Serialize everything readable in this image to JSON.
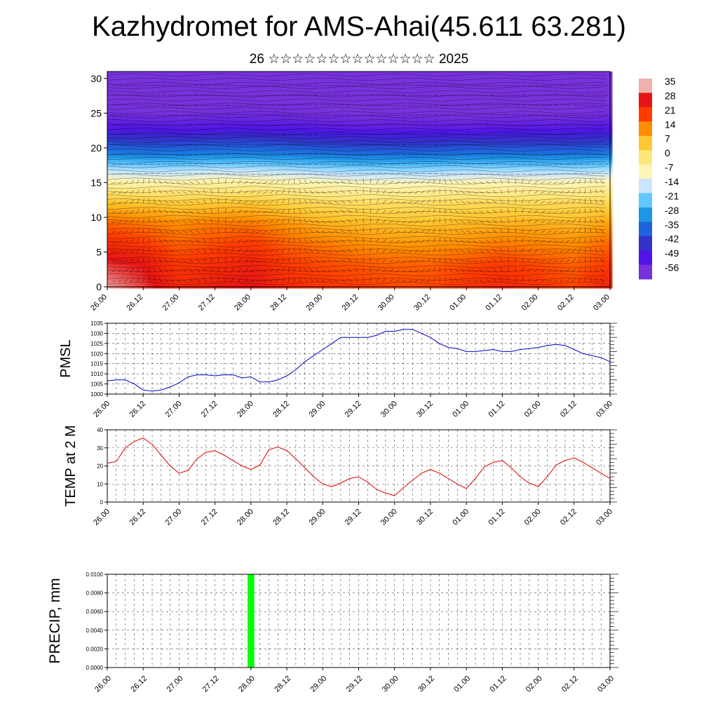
{
  "title": "Kazhydromet for AMS-Ahai(45.611 63.281)",
  "subtitle": "26 ☆☆☆☆☆☆☆☆☆☆☆☆☆☆ 2025",
  "time_labels": [
    "26.00",
    "26.12",
    "27.00",
    "27.12",
    "28.00",
    "28.12",
    "29.00",
    "29.12",
    "30.00",
    "30.12",
    "01.00",
    "01.12",
    "02.00",
    "02.12",
    "03.00"
  ],
  "chart_data": [
    {
      "type": "heatmap",
      "title": "",
      "xlabel": "",
      "ylabel": "",
      "x_categories": [
        "26.00",
        "26.12",
        "27.00",
        "27.12",
        "28.00",
        "28.12",
        "29.00",
        "29.12",
        "30.00",
        "30.12",
        "01.00",
        "01.12",
        "02.00",
        "02.12",
        "03.00"
      ],
      "ylim": [
        0,
        31
      ],
      "yticks": [
        0,
        5,
        10,
        15,
        20,
        25,
        30
      ],
      "colorbar": {
        "labels": [
          "35",
          "28",
          "21",
          "14",
          "7",
          "0",
          "-7",
          "-14",
          "-21",
          "-28",
          "-35",
          "-42",
          "-49",
          "-56"
        ],
        "values": [
          35,
          28,
          21,
          14,
          7,
          0,
          -7,
          -14,
          -21,
          -28,
          -35,
          -42,
          -49,
          -56
        ],
        "colors": [
          "#f0b0b0",
          "#e61414",
          "#ff3c00",
          "#ff8c00",
          "#ffc832",
          "#ffe678",
          "#fff5b4",
          "#c8e6ff",
          "#64c8ff",
          "#1e96e6",
          "#1e64dc",
          "#3232c8",
          "#5014e6",
          "#7832dc"
        ]
      },
      "rows": [
        {
          "level": 0,
          "values": [
            34,
            30,
            24,
            26,
            28,
            24,
            22,
            21,
            20,
            20,
            22,
            24,
            22,
            20,
            26
          ]
        },
        {
          "level": 3,
          "values": [
            30,
            28,
            22,
            24,
            26,
            22,
            20,
            19,
            18,
            18,
            20,
            22,
            20,
            18,
            22
          ]
        },
        {
          "level": 6,
          "values": [
            24,
            22,
            18,
            20,
            22,
            18,
            16,
            14,
            13,
            13,
            14,
            16,
            15,
            14,
            18
          ]
        },
        {
          "level": 9,
          "values": [
            18,
            16,
            14,
            16,
            16,
            13,
            10,
            9,
            8,
            8,
            9,
            10,
            10,
            9,
            12
          ]
        },
        {
          "level": 12,
          "values": [
            8,
            7,
            6,
            7,
            7,
            5,
            3,
            2,
            2,
            2,
            3,
            3,
            3,
            3,
            4
          ]
        },
        {
          "level": 15,
          "values": [
            -5,
            -6,
            -6,
            -5,
            -5,
            -6,
            -7,
            -8,
            -8,
            -8,
            -7,
            -7,
            -7,
            -7,
            -6
          ]
        },
        {
          "level": 17,
          "values": [
            -16,
            -17,
            -17,
            -16,
            -16,
            -17,
            -18,
            -19,
            -19,
            -19,
            -18,
            -18,
            -18,
            -18,
            -17
          ]
        },
        {
          "level": 19,
          "values": [
            -30,
            -31,
            -31,
            -30,
            -30,
            -31,
            -32,
            -33,
            -33,
            -33,
            -32,
            -32,
            -32,
            -32,
            -31
          ]
        },
        {
          "level": 21,
          "values": [
            -40,
            -41,
            -41,
            -40,
            -40,
            -41,
            -42,
            -43,
            -43,
            -43,
            -42,
            -42,
            -42,
            -42,
            -41
          ]
        },
        {
          "level": 23,
          "values": [
            -50,
            -50,
            -51,
            -50,
            -50,
            -50,
            -51,
            -52,
            -52,
            -52,
            -52,
            -51,
            -51,
            -51,
            -50
          ]
        },
        {
          "level": 25,
          "values": [
            -55,
            -56,
            -56,
            -55,
            -55,
            -55,
            -56,
            -56,
            -56,
            -56,
            -57,
            -56,
            -56,
            -56,
            -55
          ]
        },
        {
          "level": 27,
          "values": [
            -56,
            -56,
            -56,
            -56,
            -56,
            -56,
            -56,
            -56,
            -56,
            -56,
            -56,
            -56,
            -56,
            -56,
            -56
          ]
        },
        {
          "level": 31,
          "values": [
            -56,
            -56,
            -56,
            -56,
            -56,
            -56,
            -56,
            -56,
            -56,
            -56,
            -56,
            -56,
            -56,
            -56,
            -56
          ]
        }
      ],
      "grid": false,
      "colorbar_placement": "right"
    },
    {
      "type": "line",
      "title": "",
      "xlabel": "",
      "ylabel": "PMSL",
      "x": [
        "26.00",
        "26.03",
        "26.06",
        "26.09",
        "26.12",
        "26.15",
        "26.18",
        "26.21",
        "27.00",
        "27.03",
        "27.06",
        "27.09",
        "27.12",
        "27.15",
        "27.18",
        "27.21",
        "28.00",
        "28.03",
        "28.06",
        "28.09",
        "28.12",
        "28.15",
        "28.18",
        "28.21",
        "29.00",
        "29.03",
        "29.06",
        "29.09",
        "29.12",
        "29.15",
        "29.18",
        "29.21",
        "30.00",
        "30.03",
        "30.06",
        "30.09",
        "30.12",
        "30.15",
        "30.18",
        "30.21",
        "01.00",
        "01.03",
        "01.06",
        "01.09",
        "01.12",
        "01.15",
        "01.18",
        "01.21",
        "02.00",
        "02.03",
        "02.06",
        "02.09",
        "02.12",
        "02.15",
        "02.18",
        "02.21",
        "03.00"
      ],
      "ylim": [
        1000,
        1035
      ],
      "yticks": [
        1000,
        1005,
        1010,
        1015,
        1020,
        1025,
        1030,
        1035
      ],
      "x_tick_labels": [
        "26.00",
        "26.12",
        "27.00",
        "27.12",
        "28.00",
        "28.12",
        "29.00",
        "29.12",
        "30.00",
        "30.12",
        "01.00",
        "01.12",
        "02.00",
        "02.12",
        "03.00"
      ],
      "series": [
        {
          "color": "#0000cc",
          "values": [
            1006.5,
            1007,
            1007,
            1005,
            1002,
            1001.5,
            1002,
            1003.5,
            1005.5,
            1008.5,
            1009.5,
            1009.5,
            1009,
            1009.5,
            1009.5,
            1008,
            1008.5,
            1006,
            1006,
            1007,
            1009,
            1012,
            1016,
            1019,
            1022,
            1025,
            1028,
            1028,
            1028,
            1028,
            1029,
            1031,
            1031,
            1032,
            1032,
            1030,
            1028,
            1025,
            1023,
            1022.5,
            1021,
            1021,
            1021.5,
            1022,
            1021,
            1021,
            1022,
            1022.5,
            1023,
            1024,
            1024.5,
            1024,
            1022,
            1020,
            1019,
            1018,
            1016
          ]
        }
      ],
      "grid": true
    },
    {
      "type": "line",
      "title": "",
      "xlabel": "",
      "ylabel": "TEMP at 2 M",
      "x": [
        "26.00",
        "26.03",
        "26.06",
        "26.09",
        "26.12",
        "26.15",
        "26.18",
        "26.21",
        "27.00",
        "27.03",
        "27.06",
        "27.09",
        "27.12",
        "27.15",
        "27.18",
        "27.21",
        "28.00",
        "28.03",
        "28.06",
        "28.09",
        "28.12",
        "28.15",
        "28.18",
        "28.21",
        "29.00",
        "29.03",
        "29.06",
        "29.09",
        "29.12",
        "29.15",
        "29.18",
        "29.21",
        "30.00",
        "30.03",
        "30.06",
        "30.09",
        "30.12",
        "30.15",
        "30.18",
        "30.21",
        "01.00",
        "01.03",
        "01.06",
        "01.09",
        "01.12",
        "01.15",
        "01.18",
        "01.21",
        "02.00",
        "02.03",
        "02.06",
        "02.09",
        "02.12",
        "02.15",
        "02.18",
        "02.21",
        "03.00"
      ],
      "ylim": [
        0,
        40
      ],
      "yticks": [
        0,
        10,
        20,
        30,
        40
      ],
      "x_tick_labels": [
        "26.00",
        "26.12",
        "27.00",
        "27.12",
        "28.00",
        "28.12",
        "29.00",
        "29.12",
        "30.00",
        "30.12",
        "01.00",
        "01.12",
        "02.00",
        "02.12",
        "03.00"
      ],
      "series": [
        {
          "color": "#dd0000",
          "values": [
            21.5,
            22.5,
            30,
            33.5,
            35.5,
            32,
            26,
            20,
            16,
            17.5,
            24,
            27.5,
            28.5,
            26,
            23,
            20,
            18,
            20.5,
            29,
            30.5,
            28.5,
            24,
            19,
            14,
            10,
            8.5,
            10.5,
            13,
            14,
            11,
            7,
            5,
            3.5,
            8,
            12,
            16,
            18,
            16,
            13,
            10,
            7.5,
            13,
            19.5,
            22,
            23,
            19,
            14,
            10.5,
            8.5,
            14,
            20.5,
            23,
            24.5,
            22,
            19,
            16,
            13
          ]
        }
      ],
      "grid": true
    },
    {
      "type": "bar",
      "title": "",
      "xlabel": "",
      "ylabel": "PRECIP, mm",
      "categories": [
        "26.00",
        "26.12",
        "27.00",
        "27.12",
        "28.00",
        "28.12",
        "29.00",
        "29.12",
        "30.00",
        "30.12",
        "01.00",
        "01.12",
        "02.00",
        "02.12",
        "03.00"
      ],
      "bars": [
        {
          "x": "28.00",
          "value": 0.01,
          "color": "#00ff00"
        }
      ],
      "ylim": [
        0,
        0.01
      ],
      "ytick_labels": [
        "0.0000",
        "0.0020",
        "0.0040",
        "0.0060",
        "0.0080",
        "0.0100"
      ],
      "yticks": [
        0,
        0.002,
        0.004,
        0.006,
        0.008,
        0.01
      ],
      "grid": true
    }
  ]
}
